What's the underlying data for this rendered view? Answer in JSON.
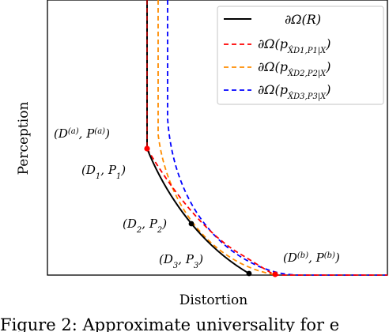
{
  "chart_data": {
    "type": "line",
    "xlabel": "Distortion",
    "ylabel": "Perception",
    "grid": false,
    "legend_placement": "top-right",
    "colors": {
      "true_boundary": "#000000",
      "series_1": "#ff0000",
      "series_2": "#ff8c00",
      "series_3": "#0000ff",
      "point_red": "#ff0000",
      "point_black": "#000000"
    },
    "legend": [
      {
        "key": "omega_r",
        "label": "∂Ω(R)",
        "style": "solid"
      },
      {
        "key": "omega_1",
        "label": "∂Ω(p X̂D1,P1|X)",
        "style": "dashed"
      },
      {
        "key": "omega_2",
        "label": "∂Ω(p X̂D2,P2|X)",
        "style": "dashed"
      },
      {
        "key": "omega_3",
        "label": "∂Ω(p X̂D3,P3|X)",
        "style": "dashed"
      }
    ],
    "annotations": {
      "point_a": "(D(a), P(a))",
      "point_1": "(D1, P1)",
      "point_2": "(D2, P2)",
      "point_3": "(D3, P3)",
      "point_b": "(D(b), P(b))"
    }
  },
  "caption": "Figure 2:  Approximate universality for e"
}
